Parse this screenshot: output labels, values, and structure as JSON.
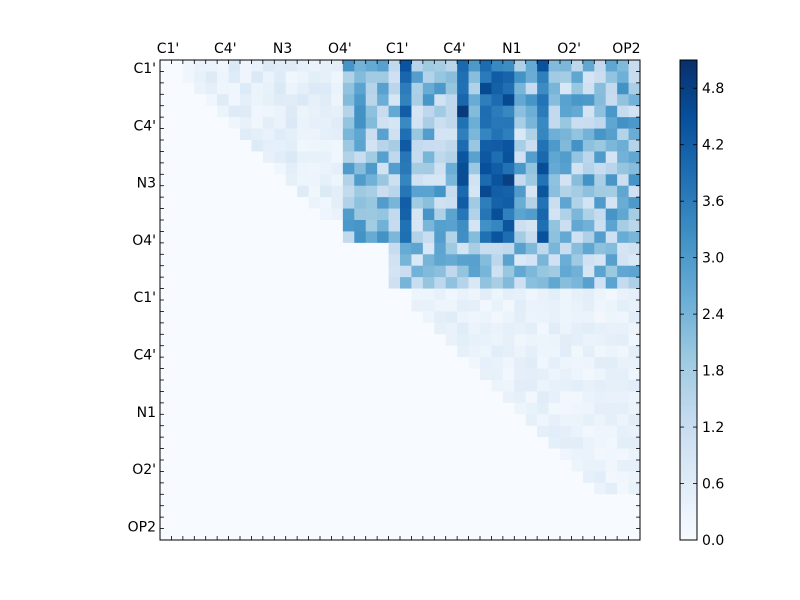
{
  "chart_data": {
    "type": "heatmap",
    "title": "",
    "xlabel": "",
    "ylabel": "",
    "x_tick_labels": [
      "C1'",
      "C4'",
      "N3",
      "O4'",
      "C1'",
      "C4'",
      "N1",
      "O2'",
      "OP2"
    ],
    "y_tick_labels": [
      "C1'",
      "C4'",
      "N3",
      "O4'",
      "C1'",
      "C4'",
      "N1",
      "O2'",
      "OP2"
    ],
    "colorbar": {
      "ticks": [
        "0.0",
        "0.6",
        "1.2",
        "1.8",
        "2.4",
        "3.0",
        "3.6",
        "4.2",
        "4.8"
      ],
      "range": [
        0,
        5.1
      ],
      "colormap": "Blues"
    },
    "grid": false,
    "matrix_size": 42,
    "blocks": [
      {
        "rows": [
          0,
          16
        ],
        "cols": [
          16,
          42
        ],
        "level": 2.2,
        "note": "dense upper-right block"
      },
      {
        "rows": [
          16,
          20
        ],
        "cols": [
          20,
          42
        ],
        "level": 2.0
      },
      {
        "rows": [
          0,
          14
        ],
        "cols": [
          2,
          16
        ],
        "level": 0.5
      },
      {
        "rows": [
          20,
          38
        ],
        "cols": [
          22,
          42
        ],
        "level": 0.4
      }
    ],
    "peak_values": [
      {
        "row": 4,
        "col": 26,
        "value": 4.9
      },
      {
        "row": 10,
        "col": 30,
        "value": 4.8
      },
      {
        "row": 2,
        "col": 28,
        "value": 4.6
      }
    ]
  },
  "colors": {
    "low": "#f7fbff",
    "high": "#08306b",
    "axis": "#000000"
  }
}
